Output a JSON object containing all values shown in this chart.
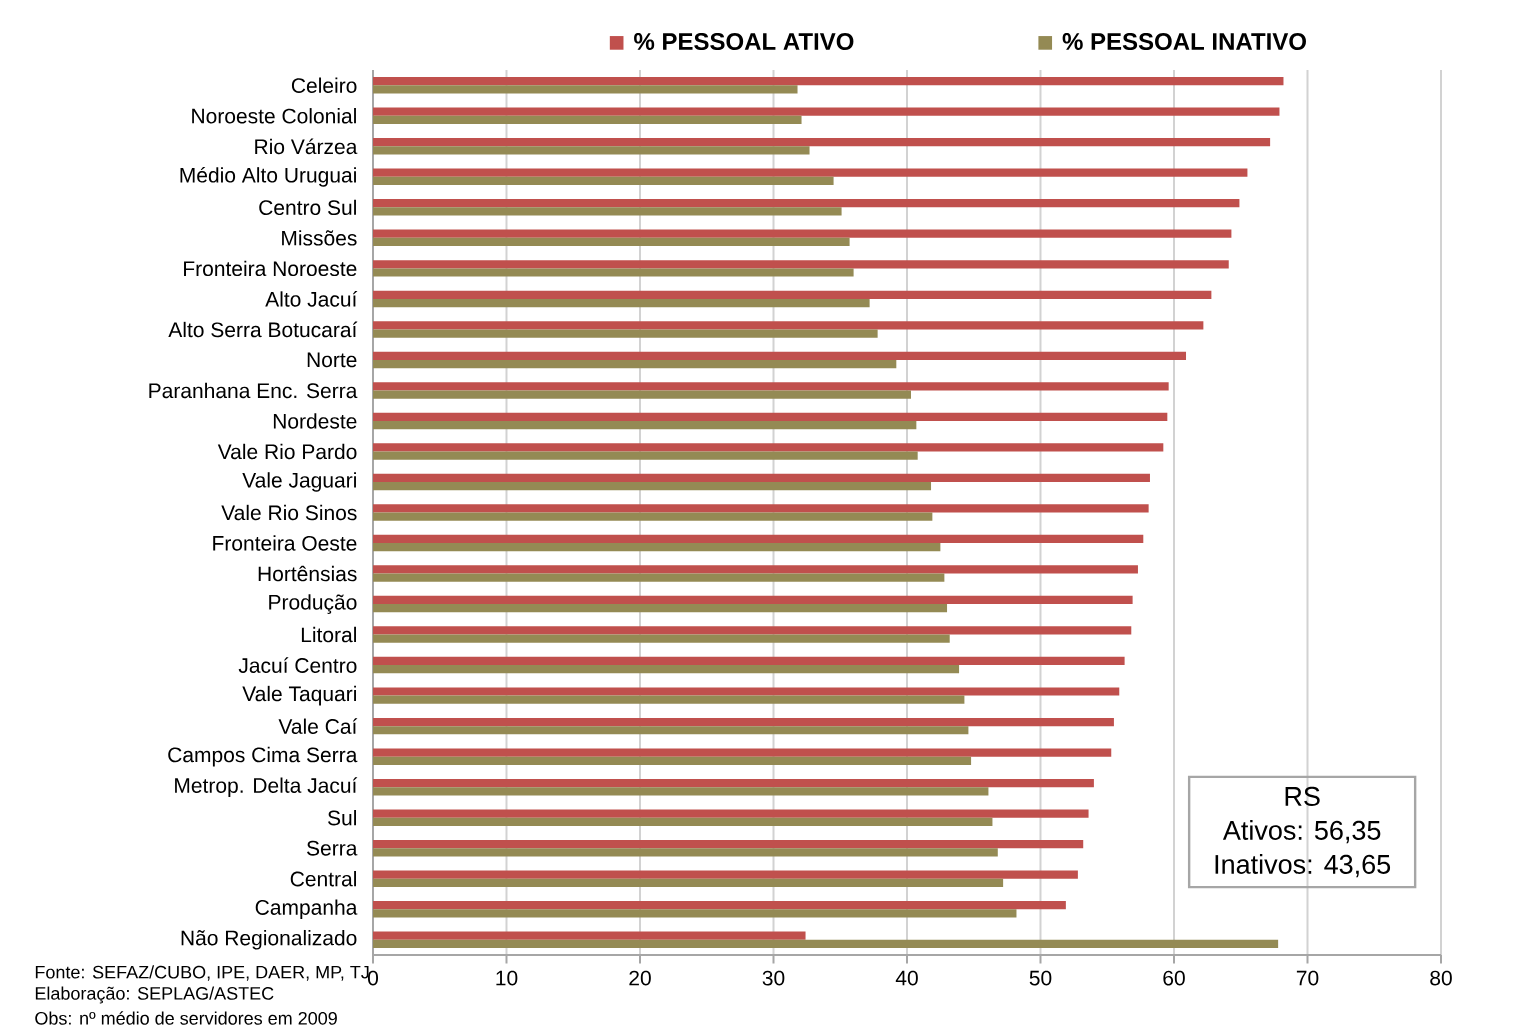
{
  "chart_data": {
    "type": "bar",
    "orientation": "horizontal",
    "categories": [
      "Celeiro",
      "Noroeste Colonial",
      "Rio Várzea",
      "Médio Alto Uruguai",
      "Centro Sul",
      "Missões",
      "Fronteira Noroeste",
      "Alto Jacuí",
      "Alto Serra Botucaraí",
      "Norte",
      "Paranhana Enc. Serra",
      "Nordeste",
      "Vale Rio Pardo",
      "Vale Jaguari",
      "Vale Rio Sinos",
      "Fronteira Oeste",
      "Hortênsias",
      "Produção",
      "Litoral",
      "Jacuí Centro",
      "Vale Taquari",
      "Vale Caí",
      "Campos Cima Serra",
      "Metrop. Delta Jacuí",
      "Sul",
      "Serra",
      "Central",
      "Campanha",
      "Não Regionalizado"
    ],
    "series": [
      {
        "name": "% PESSOAL ATIVO",
        "color": "#c0504d",
        "values": [
          68.2,
          67.9,
          67.2,
          65.5,
          64.9,
          64.3,
          64.1,
          62.8,
          62.2,
          60.9,
          59.6,
          59.5,
          59.2,
          58.2,
          58.1,
          57.7,
          57.3,
          56.9,
          56.8,
          56.3,
          55.9,
          55.5,
          55.3,
          54.0,
          53.6,
          53.2,
          52.8,
          51.9,
          32.4
        ]
      },
      {
        "name": "% PESSOAL INATIVO",
        "color": "#948a54",
        "values": [
          31.8,
          32.1,
          32.7,
          34.5,
          35.1,
          35.7,
          36.0,
          37.2,
          37.8,
          39.2,
          40.3,
          40.7,
          40.8,
          41.8,
          41.9,
          42.5,
          42.8,
          43.0,
          43.2,
          43.9,
          44.3,
          44.6,
          44.8,
          46.1,
          46.4,
          46.8,
          47.2,
          48.2,
          67.8
        ]
      }
    ],
    "xlim": [
      0,
      80
    ],
    "xticks": [
      0,
      10,
      20,
      30,
      40,
      50,
      60,
      70,
      80
    ],
    "grid": "x",
    "legend": "top",
    "annotations": [
      "RS",
      "Ativos: 56,35",
      "Inativos: 43,65",
      "Fonte: SEFAZ/CUBO, IPE, DAER,  MP, TJ",
      "Elaboração:  SEPLAG/ASTEC",
      "Obs: nº médio de servidores em 2009"
    ]
  }
}
